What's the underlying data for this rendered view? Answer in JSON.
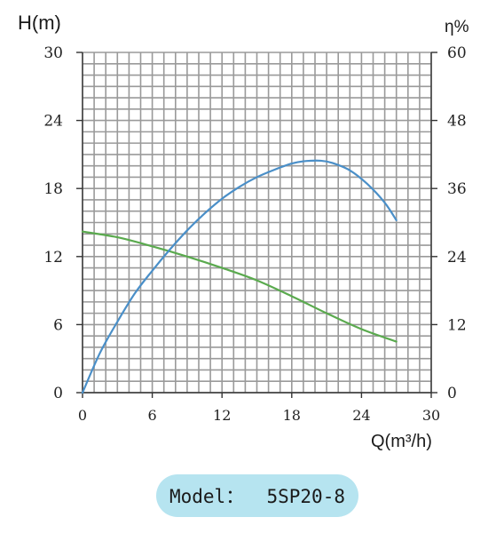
{
  "chart_data": {
    "type": "line",
    "left_axis": {
      "label": "H(m)",
      "ticks": [
        "0",
        "6",
        "12",
        "18",
        "24",
        "30"
      ],
      "range": [
        0,
        30
      ]
    },
    "right_axis": {
      "label": "η%",
      "ticks": [
        "0",
        "12",
        "24",
        "36",
        "48",
        "60"
      ],
      "range": [
        0,
        60
      ]
    },
    "x_axis": {
      "label": "Q(m³/h)",
      "ticks": [
        "0",
        "6",
        "12",
        "18",
        "24",
        "30"
      ],
      "range": [
        0,
        30
      ]
    },
    "grid": true,
    "series": [
      {
        "axis": "left",
        "color": "#5aaa4e",
        "points": [
          [
            0,
            14.2
          ],
          [
            3,
            13.7
          ],
          [
            6,
            12.9
          ],
          [
            9,
            12.0
          ],
          [
            12,
            11.0
          ],
          [
            15,
            9.9
          ],
          [
            18,
            8.5
          ],
          [
            21,
            7.0
          ],
          [
            24,
            5.6
          ],
          [
            27,
            4.5
          ]
        ]
      },
      {
        "axis": "right",
        "color": "#4a8fc8",
        "points": [
          [
            0,
            0
          ],
          [
            1.5,
            7
          ],
          [
            3,
            12.5
          ],
          [
            4.5,
            17.5
          ],
          [
            6,
            21.5
          ],
          [
            7.5,
            25.2
          ],
          [
            9,
            28.6
          ],
          [
            10.5,
            31.6
          ],
          [
            12,
            34.2
          ],
          [
            13.5,
            36.3
          ],
          [
            15,
            38
          ],
          [
            16.5,
            39.3
          ],
          [
            18,
            40.4
          ],
          [
            19,
            40.8
          ],
          [
            20.5,
            40.9
          ],
          [
            21.5,
            40.5
          ],
          [
            23,
            39.2
          ],
          [
            24.5,
            36.8
          ],
          [
            26,
            33.5
          ],
          [
            27,
            30.4
          ]
        ]
      }
    ]
  },
  "model": {
    "label": "Model：  5SP20-8"
  },
  "colors": {
    "grid": "#9a9a9a",
    "pill": "#b6e4f0",
    "head": "#5aaa4e",
    "efficiency": "#4a8fc8"
  }
}
